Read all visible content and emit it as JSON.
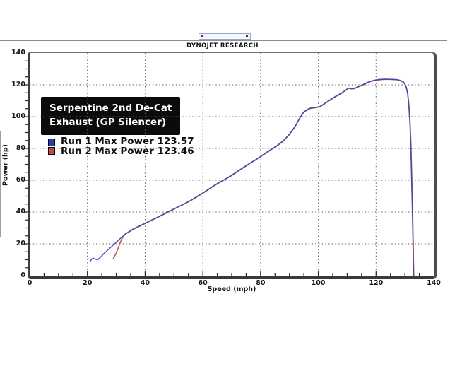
{
  "header": {
    "brand": "DYNOJET RESEARCH"
  },
  "chart_data": {
    "type": "line",
    "title": "Serpentine 2nd De-Cat Exhaust (GP Silencer)",
    "title_lines": [
      "Serpentine 2nd De-Cat",
      "Exhaust (GP Silencer)"
    ],
    "xlabel": "Speed (mph)",
    "ylabel": "Power (hp)",
    "xlim": [
      0,
      140
    ],
    "ylim": [
      0,
      140
    ],
    "x_ticks": [
      0,
      20,
      40,
      60,
      80,
      100,
      120,
      140
    ],
    "y_ticks": [
      0,
      20,
      40,
      60,
      80,
      100,
      120,
      140
    ],
    "minor_tick_step": 5,
    "grid": "dotted",
    "grid_color": "#5f5f5f",
    "legend_position": "upper-left",
    "legend": [
      {
        "label": "Run 1 Max Power 123.57",
        "run": "Run 1",
        "max_power": 123.57,
        "swatch_color": "#2c3cae"
      },
      {
        "label": "Run 2 Max Power 123.46",
        "run": "Run 2",
        "max_power": 123.46,
        "swatch_color": "#c64747"
      }
    ],
    "series": [
      {
        "name": "Run 1",
        "color": "#3847ad",
        "width": 1.5,
        "opacity": 0.9,
        "points": [
          [
            21,
            9
          ],
          [
            21.5,
            10.5
          ],
          [
            22,
            11
          ],
          [
            22.5,
            10.5
          ],
          [
            23.5,
            10
          ],
          [
            24.5,
            11.5
          ],
          [
            25.5,
            13.5
          ],
          [
            27,
            16
          ],
          [
            28.5,
            18.5
          ],
          [
            30,
            21
          ],
          [
            31.5,
            23.5
          ],
          [
            33,
            26
          ],
          [
            34.5,
            27.8
          ],
          [
            36,
            29.5
          ],
          [
            38,
            31.2
          ],
          [
            40,
            33
          ],
          [
            42,
            34.8
          ],
          [
            44,
            36.5
          ],
          [
            46,
            38.3
          ],
          [
            48,
            40.2
          ],
          [
            50,
            42
          ],
          [
            52,
            43.8
          ],
          [
            54,
            45.6
          ],
          [
            56,
            47.6
          ],
          [
            58,
            49.8
          ],
          [
            60,
            52
          ],
          [
            62,
            54.4
          ],
          [
            64,
            56.8
          ],
          [
            66,
            59
          ],
          [
            68,
            61
          ],
          [
            70,
            63.2
          ],
          [
            72,
            65.6
          ],
          [
            74,
            68
          ],
          [
            76,
            70.4
          ],
          [
            78,
            72.6
          ],
          [
            80,
            75
          ],
          [
            82,
            77.4
          ],
          [
            84,
            79.8
          ],
          [
            86,
            82.2
          ],
          [
            88,
            85
          ],
          [
            90,
            89
          ],
          [
            92,
            94
          ],
          [
            93.5,
            99
          ],
          [
            95,
            103
          ],
          [
            96.5,
            104.8
          ],
          [
            97.5,
            105.5
          ],
          [
            99,
            105.8
          ],
          [
            100.5,
            106.3
          ],
          [
            102,
            108
          ],
          [
            104,
            110.5
          ],
          [
            106,
            112.8
          ],
          [
            108,
            114.8
          ],
          [
            109.5,
            116.8
          ],
          [
            110.5,
            118
          ],
          [
            111.5,
            117.6
          ],
          [
            112.5,
            117.8
          ],
          [
            114,
            119
          ],
          [
            115.5,
            120.2
          ],
          [
            117,
            121.5
          ],
          [
            118.5,
            122.5
          ],
          [
            120,
            123.1
          ],
          [
            121.5,
            123.4
          ],
          [
            123,
            123.57
          ],
          [
            124.5,
            123.5
          ],
          [
            126,
            123.4
          ],
          [
            127.5,
            123.2
          ],
          [
            128.5,
            122.8
          ],
          [
            129.5,
            121.8
          ],
          [
            130.3,
            119.5
          ],
          [
            130.9,
            115
          ],
          [
            131.3,
            108
          ],
          [
            131.7,
            97
          ],
          [
            132,
            84
          ],
          [
            132.2,
            70
          ],
          [
            132.4,
            55
          ],
          [
            132.6,
            38
          ],
          [
            132.8,
            20
          ],
          [
            132.9,
            8
          ],
          [
            133,
            0
          ]
        ]
      },
      {
        "name": "Run 2",
        "color": "#c2574f",
        "width": 1.6,
        "opacity": 1,
        "points": [
          [
            29,
            11
          ],
          [
            29.8,
            13.5
          ],
          [
            30.5,
            16.5
          ],
          [
            31.2,
            20
          ],
          [
            32,
            23.3
          ],
          [
            33,
            26
          ],
          [
            34.5,
            27.6
          ],
          [
            36,
            29.3
          ],
          [
            38,
            31.0
          ],
          [
            40,
            32.8
          ],
          [
            42,
            34.6
          ],
          [
            44,
            36.4
          ],
          [
            46,
            38.1
          ],
          [
            48,
            40.0
          ],
          [
            50,
            41.8
          ],
          [
            52,
            43.7
          ],
          [
            54,
            45.5
          ],
          [
            56,
            47.4
          ],
          [
            58,
            49.6
          ],
          [
            60,
            51.8
          ],
          [
            62,
            54.2
          ],
          [
            64,
            56.6
          ],
          [
            66,
            58.8
          ],
          [
            68,
            60.9
          ],
          [
            70,
            63.0
          ],
          [
            72,
            65.4
          ],
          [
            74,
            67.8
          ],
          [
            76,
            70.2
          ],
          [
            78,
            72.5
          ],
          [
            80,
            74.8
          ],
          [
            82,
            77.2
          ],
          [
            84,
            79.6
          ],
          [
            86,
            82.0
          ],
          [
            88,
            84.8
          ],
          [
            90,
            88.8
          ],
          [
            92,
            93.8
          ],
          [
            93.5,
            98.8
          ],
          [
            95,
            102.8
          ],
          [
            96.5,
            104.6
          ],
          [
            97.5,
            105.3
          ],
          [
            99,
            105.6
          ],
          [
            100.5,
            106.1
          ],
          [
            102,
            107.8
          ],
          [
            104,
            110.3
          ],
          [
            106,
            112.6
          ],
          [
            108,
            114.6
          ],
          [
            109.5,
            116.6
          ],
          [
            110.5,
            117.8
          ],
          [
            111.5,
            117.4
          ],
          [
            112.5,
            117.6
          ],
          [
            114,
            118.8
          ],
          [
            115.5,
            120.0
          ],
          [
            117,
            121.3
          ],
          [
            118.5,
            122.3
          ],
          [
            120,
            122.9
          ],
          [
            121.5,
            123.2
          ],
          [
            123,
            123.46
          ],
          [
            124.5,
            123.4
          ],
          [
            126,
            123.3
          ],
          [
            127.5,
            123.1
          ],
          [
            128.5,
            122.6
          ],
          [
            129.5,
            121.6
          ],
          [
            130.4,
            119.2
          ],
          [
            131.0,
            114.5
          ],
          [
            131.4,
            107
          ],
          [
            131.8,
            96
          ],
          [
            132.1,
            83
          ],
          [
            132.3,
            69
          ],
          [
            132.5,
            54
          ],
          [
            132.7,
            37
          ],
          [
            132.9,
            19
          ],
          [
            133.0,
            7
          ],
          [
            133.1,
            0
          ]
        ]
      }
    ]
  }
}
